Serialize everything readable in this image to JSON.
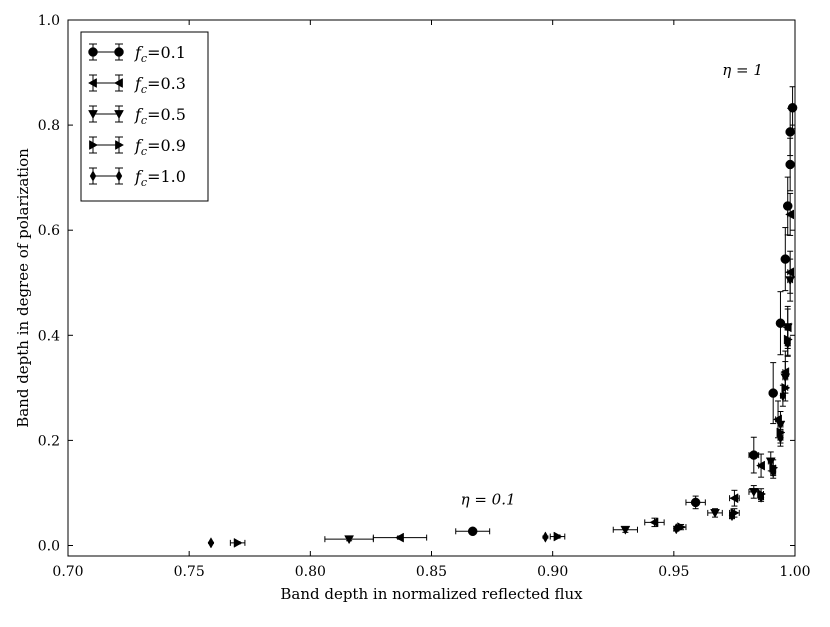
{
  "chart_data": {
    "type": "scatter",
    "xlabel": "Band depth in normalized reflected flux",
    "ylabel": "Band depth in degree of polarization",
    "xlim": [
      0.7,
      1.0
    ],
    "ylim": [
      -0.02,
      1.0
    ],
    "xticks": [
      "0.70",
      "0.75",
      "0.80",
      "0.85",
      "0.90",
      "0.95",
      "1.00"
    ],
    "xtick_values": [
      0.7,
      0.75,
      0.8,
      0.85,
      0.9,
      0.95,
      1.0
    ],
    "yticks": [
      "0.0",
      "0.2",
      "0.4",
      "0.6",
      "0.8",
      "1.0"
    ],
    "ytick_values": [
      0.0,
      0.2,
      0.4,
      0.6,
      0.8,
      1.0
    ],
    "grid": false,
    "legend_position": "top-left",
    "annotations": [
      {
        "text": "η = 1",
        "x": 0.97,
        "y": 0.895
      },
      {
        "text": "η = 0.1",
        "x": 0.862,
        "y": 0.078
      }
    ],
    "series": [
      {
        "name": "fc=0.1",
        "legend_text": "=0.1",
        "marker": "circle",
        "color": "#000000",
        "points": [
          {
            "x": 0.867,
            "y": 0.027,
            "xerr": 0.007,
            "yerr": 0.004
          },
          {
            "x": 0.959,
            "y": 0.082,
            "xerr": 0.004,
            "yerr": 0.012
          },
          {
            "x": 0.983,
            "y": 0.172,
            "xerr": 0.002,
            "yerr": 0.034
          },
          {
            "x": 0.991,
            "y": 0.29,
            "xerr": 0.001,
            "yerr": 0.058
          },
          {
            "x": 0.994,
            "y": 0.423,
            "xerr": 0.001,
            "yerr": 0.06
          },
          {
            "x": 0.996,
            "y": 0.545,
            "xerr": 0.001,
            "yerr": 0.06
          },
          {
            "x": 0.997,
            "y": 0.646,
            "xerr": 0.001,
            "yerr": 0.055
          },
          {
            "x": 0.998,
            "y": 0.725,
            "xerr": 0.001,
            "yerr": 0.05
          },
          {
            "x": 0.998,
            "y": 0.787,
            "xerr": 0.001,
            "yerr": 0.045
          },
          {
            "x": 0.999,
            "y": 0.833,
            "xerr": 0.001,
            "yerr": 0.04
          }
        ]
      },
      {
        "name": "fc=0.3",
        "legend_text": "=0.3",
        "marker": "triangle-left",
        "color": "#000000",
        "points": [
          {
            "x": 0.837,
            "y": 0.015,
            "xerr": 0.011,
            "yerr": 0.003
          },
          {
            "x": 0.942,
            "y": 0.044,
            "xerr": 0.004,
            "yerr": 0.008
          },
          {
            "x": 0.975,
            "y": 0.09,
            "xerr": 0.002,
            "yerr": 0.015
          },
          {
            "x": 0.986,
            "y": 0.152,
            "xerr": 0.001,
            "yerr": 0.022
          },
          {
            "x": 0.993,
            "y": 0.24,
            "xerr": 0.001,
            "yerr": 0.035
          },
          {
            "x": 0.996,
            "y": 0.33,
            "xerr": 0.001,
            "yerr": 0.04
          },
          {
            "x": 0.997,
            "y": 0.415,
            "xerr": 0.001,
            "yerr": 0.04
          },
          {
            "x": 0.998,
            "y": 0.52,
            "xerr": 0.001,
            "yerr": 0.04
          },
          {
            "x": 0.998,
            "y": 0.63,
            "xerr": 0.001,
            "yerr": 0.04
          }
        ]
      },
      {
        "name": "fc=0.5",
        "legend_text": "=0.5",
        "marker": "triangle-down",
        "color": "#000000",
        "points": [
          {
            "x": 0.816,
            "y": 0.012,
            "xerr": 0.01,
            "yerr": 0.003
          },
          {
            "x": 0.93,
            "y": 0.03,
            "xerr": 0.005,
            "yerr": 0.005
          },
          {
            "x": 0.967,
            "y": 0.062,
            "xerr": 0.003,
            "yerr": 0.008
          },
          {
            "x": 0.983,
            "y": 0.102,
            "xerr": 0.002,
            "yerr": 0.012
          },
          {
            "x": 0.99,
            "y": 0.16,
            "xerr": 0.001,
            "yerr": 0.018
          },
          {
            "x": 0.994,
            "y": 0.23,
            "xerr": 0.001,
            "yerr": 0.025
          },
          {
            "x": 0.996,
            "y": 0.32,
            "xerr": 0.001,
            "yerr": 0.03
          },
          {
            "x": 0.997,
            "y": 0.415,
            "xerr": 0.001,
            "yerr": 0.035
          },
          {
            "x": 0.998,
            "y": 0.505,
            "xerr": 0.001,
            "yerr": 0.04
          }
        ]
      },
      {
        "name": "fc=0.9",
        "legend_text": "=0.9",
        "marker": "triangle-right",
        "color": "#000000",
        "points": [
          {
            "x": 0.77,
            "y": 0.005,
            "xerr": 0.003,
            "yerr": 0.002
          },
          {
            "x": 0.902,
            "y": 0.017,
            "xerr": 0.003,
            "yerr": 0.003
          },
          {
            "x": 0.953,
            "y": 0.035,
            "xerr": 0.002,
            "yerr": 0.005
          },
          {
            "x": 0.975,
            "y": 0.062,
            "xerr": 0.002,
            "yerr": 0.008
          },
          {
            "x": 0.986,
            "y": 0.098,
            "xerr": 0.001,
            "yerr": 0.01
          },
          {
            "x": 0.991,
            "y": 0.148,
            "xerr": 0.001,
            "yerr": 0.015
          },
          {
            "x": 0.994,
            "y": 0.215,
            "xerr": 0.001,
            "yerr": 0.02
          },
          {
            "x": 0.996,
            "y": 0.3,
            "xerr": 0.001,
            "yerr": 0.025
          },
          {
            "x": 0.997,
            "y": 0.392,
            "xerr": 0.001,
            "yerr": 0.03
          }
        ]
      },
      {
        "name": "fc=1.0",
        "legend_text": "=1.0",
        "marker": "diamond",
        "color": "#000000",
        "points": [
          {
            "x": 0.759,
            "y": 0.005,
            "xerr": 0.0,
            "yerr": 0.001
          },
          {
            "x": 0.897,
            "y": 0.016,
            "xerr": 0.0,
            "yerr": 0.002
          },
          {
            "x": 0.951,
            "y": 0.032,
            "xerr": 0.001,
            "yerr": 0.004
          },
          {
            "x": 0.974,
            "y": 0.057,
            "xerr": 0.001,
            "yerr": 0.006
          },
          {
            "x": 0.986,
            "y": 0.092,
            "xerr": 0.001,
            "yerr": 0.008
          },
          {
            "x": 0.991,
            "y": 0.14,
            "xerr": 0.001,
            "yerr": 0.012
          },
          {
            "x": 0.994,
            "y": 0.205,
            "xerr": 0.001,
            "yerr": 0.016
          },
          {
            "x": 0.995,
            "y": 0.285,
            "xerr": 0.001,
            "yerr": 0.02
          },
          {
            "x": 0.997,
            "y": 0.385,
            "xerr": 0.001,
            "yerr": 0.025
          }
        ]
      }
    ]
  }
}
